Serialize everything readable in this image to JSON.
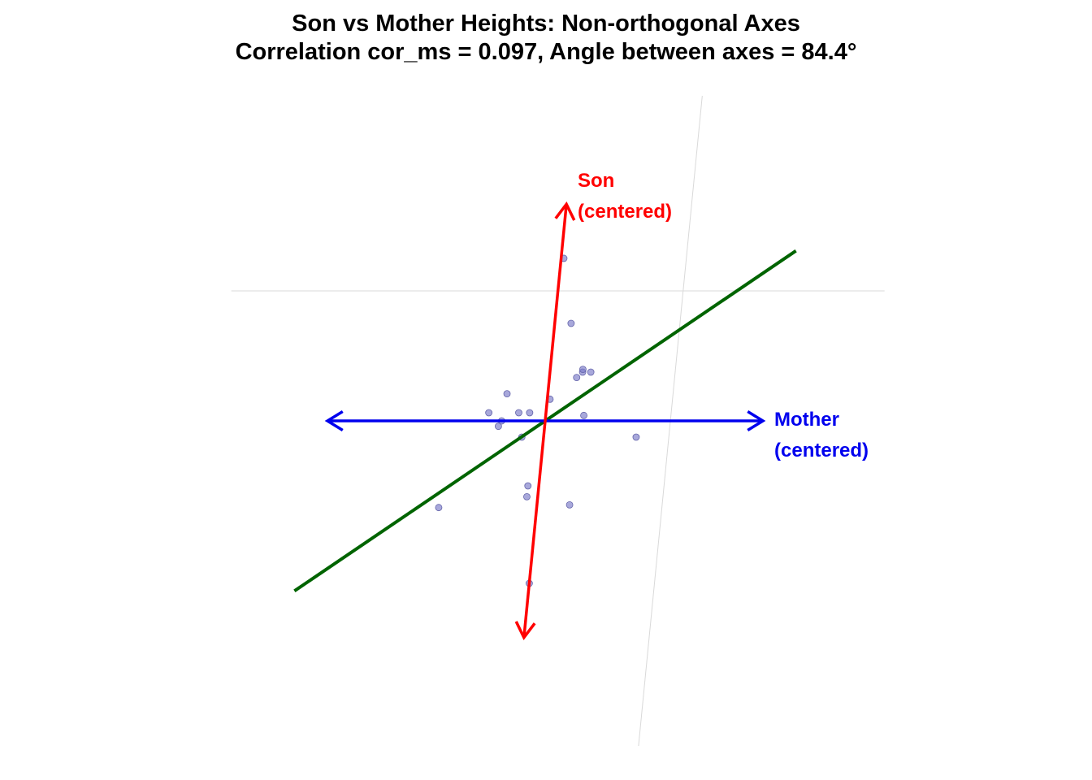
{
  "chart_data": {
    "type": "scatter",
    "title": "Son vs Mother Heights: Non-orthogonal Axes",
    "subtitle": "Correlation cor_ms = 0.097, Angle between axes = 84.4°",
    "angle_deg": 84.4,
    "correlation": 0.097,
    "axes": [
      {
        "name": "Mother",
        "label_line1": "Mother",
        "label_line2": "(centered)",
        "color": "#0000ee",
        "range": [
          -4.0,
          4.0
        ]
      },
      {
        "name": "Son",
        "label_line1": "Son",
        "label_line2": "(centered)",
        "color": "#ff0000",
        "range": [
          -4.0,
          4.0
        ]
      }
    ],
    "points": [
      {
        "x": -0.75,
        "y": 0.5
      },
      {
        "x": -1.05,
        "y": 0.15
      },
      {
        "x": -0.8,
        "y": 0.0
      },
      {
        "x": -0.85,
        "y": -0.1
      },
      {
        "x": -0.5,
        "y": 0.15
      },
      {
        "x": -0.3,
        "y": 0.15
      },
      {
        "x": 0.05,
        "y": 0.4
      },
      {
        "x": -0.4,
        "y": -0.3
      },
      {
        "x": 0.5,
        "y": 0.8
      },
      {
        "x": 0.6,
        "y": 0.9
      },
      {
        "x": 0.75,
        "y": 0.9
      },
      {
        "x": 0.6,
        "y": 0.95
      },
      {
        "x": 0.3,
        "y": 1.8
      },
      {
        "x": 0.05,
        "y": 3.0
      },
      {
        "x": 0.7,
        "y": 0.1
      },
      {
        "x": 1.7,
        "y": -0.3
      },
      {
        "x": -0.2,
        "y": -1.2
      },
      {
        "x": -0.2,
        "y": -1.4
      },
      {
        "x": 0.6,
        "y": -1.55
      },
      {
        "x": -1.8,
        "y": -1.6
      },
      {
        "x": 0.0,
        "y": -3.0
      }
    ],
    "regression_line": {
      "color": "#006400",
      "x_range": [
        -4.3,
        4.3
      ],
      "slope": 0.73,
      "intercept": 0.0
    },
    "grid": true,
    "point_color": "#7a7ac8"
  }
}
